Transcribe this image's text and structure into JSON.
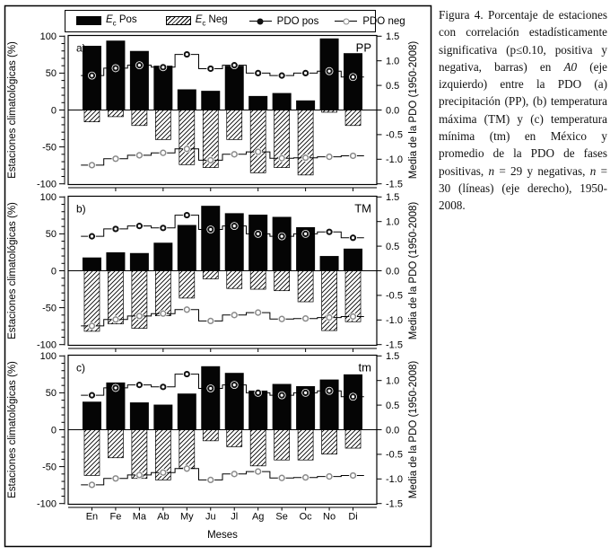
{
  "figure": {
    "legend": {
      "ec_pos": {
        "e": "E",
        "sub": "c",
        "rest": " Pos"
      },
      "ec_neg": {
        "e": "E",
        "sub": "c",
        "rest": " Neg"
      },
      "pdo_pos": "PDO pos",
      "pdo_neg": "PDO neg"
    }
  },
  "caption": {
    "segments": [
      {
        "text": "Figura 4. Porcentaje de estaciones con correlación estadísticamente significativa (p≤0.10, positiva y negativa, barras) en ",
        "italic": false
      },
      {
        "text": "A0",
        "italic": true
      },
      {
        "text": " (eje izquierdo) entre la PDO (a) precipitación (PP), (b) temperatura máxima (TM) y (c) temperatura mínima (tm) en México y promedio de la PDO de fases positivas, ",
        "italic": false
      },
      {
        "text": "n",
        "italic": true
      },
      {
        "text": " = 29 y negativas, ",
        "italic": false
      },
      {
        "text": "n",
        "italic": true
      },
      {
        "text": " = 30 (líneas) (eje derecho), 1950-2008.",
        "italic": false
      }
    ]
  },
  "chart_data": {
    "type": "bar",
    "subtype": "grouped bars with right-axis step lines, 3 stacked panels",
    "categories": [
      "En",
      "Fe",
      "Ma",
      "Ab",
      "My",
      "Ju",
      "Jl",
      "Ag",
      "Se",
      "Oc",
      "No",
      "Di"
    ],
    "xlabel": "Meses",
    "left_axis": {
      "label": "Estaciones climatológicas (%)",
      "lim": [
        -100,
        100
      ],
      "tick_labels": [
        "100",
        "50",
        "0",
        "-50",
        "-100"
      ],
      "tick_values": [
        100,
        50,
        0,
        -50,
        -100
      ],
      "minor_tick_step": 10
    },
    "right_axis": {
      "label": "Media de la PDO (1950-2008)",
      "lim": [
        -1.5,
        1.5
      ],
      "tick_labels": [
        "1.5",
        "1.0",
        "0.5",
        "0.0",
        "-0.5",
        "-1.0",
        "-1.5"
      ],
      "tick_values": [
        1.5,
        1.0,
        0.5,
        0.0,
        -0.5,
        -1.0,
        -1.5
      ]
    },
    "lines": {
      "pdo_pos": {
        "name": "PDO pos",
        "axis": "right",
        "style": "step",
        "values": [
          0.7,
          0.85,
          0.91,
          0.87,
          1.13,
          0.84,
          0.91,
          0.75,
          0.7,
          0.75,
          0.79,
          0.67
        ]
      },
      "pdo_neg": {
        "name": "PDO neg",
        "axis": "right",
        "style": "step",
        "values": [
          -1.12,
          -0.99,
          -0.92,
          -0.87,
          -0.79,
          -1.02,
          -0.9,
          -0.85,
          -0.98,
          -0.97,
          -0.95,
          -0.93
        ]
      }
    },
    "panels": [
      {
        "panel_label": "a)",
        "var_label": "PP",
        "ec_pos": [
          87,
          94,
          80,
          60,
          28,
          26,
          60,
          19,
          23,
          13,
          97,
          77
        ],
        "ec_neg": [
          -16,
          -9,
          -21,
          -40,
          -74,
          -78,
          -40,
          -85,
          -78,
          -88,
          -3,
          -21
        ]
      },
      {
        "panel_label": "b)",
        "var_label": "TM",
        "ec_pos": [
          18,
          25,
          24,
          38,
          62,
          88,
          78,
          76,
          73,
          59,
          20,
          30
        ],
        "ec_neg": [
          -82,
          -72,
          -78,
          -61,
          -37,
          -11,
          -24,
          -25,
          -27,
          -42,
          -81,
          -69
        ]
      },
      {
        "panel_label": "c)",
        "var_label": "tm",
        "ec_pos": [
          38,
          64,
          37,
          34,
          49,
          86,
          77,
          53,
          62,
          59,
          68,
          75
        ],
        "ec_neg": [
          -62,
          -38,
          -66,
          -68,
          -52,
          -15,
          -23,
          -49,
          -41,
          -41,
          -33,
          -25
        ]
      }
    ],
    "colors": {
      "bar_pos": "#050505",
      "hatch_stroke": "#000000",
      "line": "#000000",
      "pos_marker": "#111111",
      "neg_marker_stroke": "#8a8a8a"
    }
  }
}
